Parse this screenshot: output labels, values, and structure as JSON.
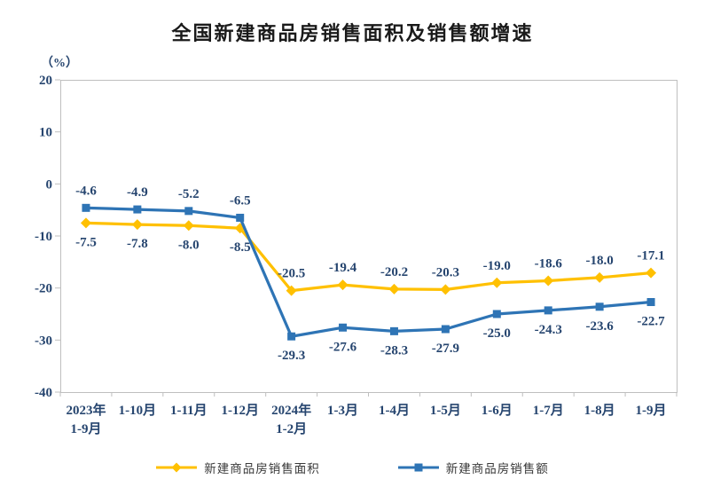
{
  "chart_data": {
    "type": "line",
    "title": "全国新建商品房销售面积及销售额增速",
    "unit_label": "（%）",
    "ylim": [
      -40,
      20
    ],
    "yticks": [
      20,
      10,
      0,
      -10,
      -20,
      -30,
      -40
    ],
    "grid": false,
    "legend_position": "bottom",
    "axis_color": "#BFBFBF",
    "label_color": "#26456F",
    "categories": [
      [
        "2023年",
        "1-9月"
      ],
      [
        "1-10月"
      ],
      [
        "1-11月"
      ],
      [
        "1-12月"
      ],
      [
        "2024年",
        "1-2月"
      ],
      [
        "1-3月"
      ],
      [
        "1-4月"
      ],
      [
        "1-5月"
      ],
      [
        "1-6月"
      ],
      [
        "1-7月"
      ],
      [
        "1-8月"
      ],
      [
        "1-9月"
      ]
    ],
    "series": [
      {
        "name": "新建商品房销售面积",
        "color": "#FFC000",
        "marker": "diamond",
        "values": [
          -7.5,
          -7.8,
          -8.0,
          -8.5,
          -20.5,
          -19.4,
          -20.2,
          -20.3,
          -19.0,
          -18.6,
          -18.0,
          -17.1
        ],
        "label_side": [
          "below",
          "below",
          "below",
          "below",
          "above",
          "above",
          "above",
          "above",
          "above",
          "above",
          "above",
          "above"
        ]
      },
      {
        "name": "新建商品房销售额",
        "color": "#2E74B5",
        "marker": "square",
        "values": [
          -4.6,
          -4.9,
          -5.2,
          -6.5,
          -29.3,
          -27.6,
          -28.3,
          -27.9,
          -25.0,
          -24.3,
          -23.6,
          -22.7
        ],
        "label_side": [
          "above",
          "above",
          "above",
          "above",
          "below",
          "below",
          "below",
          "below",
          "below",
          "below",
          "below",
          "below"
        ]
      }
    ]
  }
}
